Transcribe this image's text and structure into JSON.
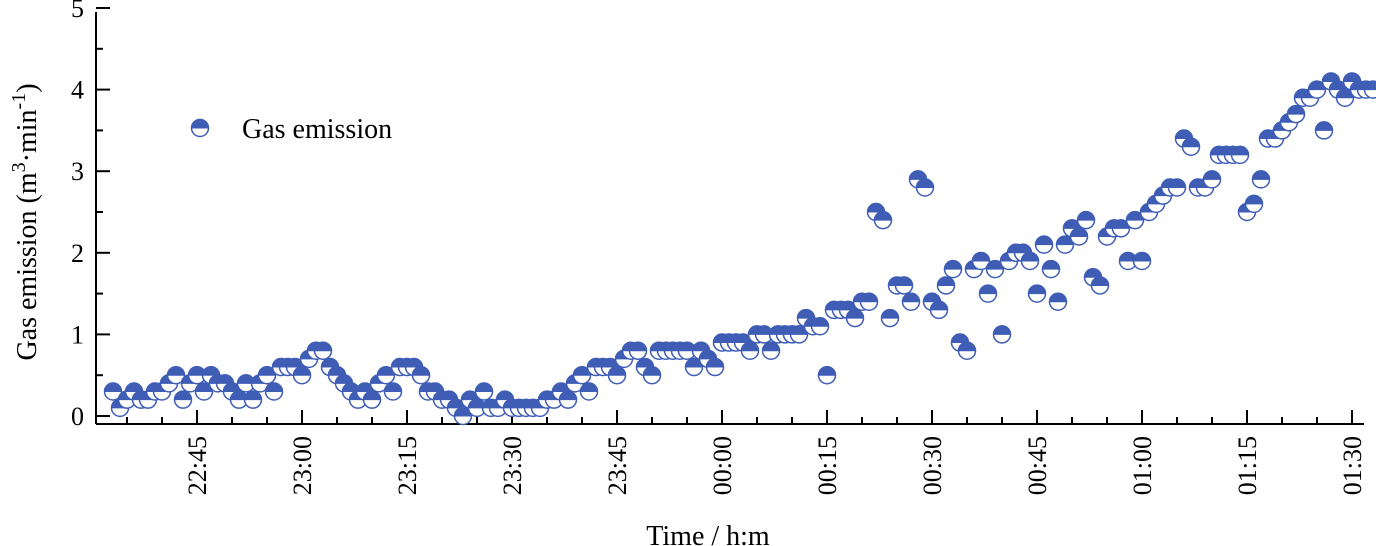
{
  "chart_data": {
    "type": "scatter",
    "xlabel": "Time / h:m",
    "ylabel_parts": [
      "Gas emission (m",
      "3",
      "·min",
      "-1",
      ")"
    ],
    "legend_label": "Gas emission",
    "legend_position": "top-left",
    "grid": false,
    "xlim": [
      "22:32",
      "01:30"
    ],
    "ylim": [
      0,
      5
    ],
    "yticks": [
      "0",
      "1",
      "2",
      "3",
      "4",
      "5"
    ],
    "xticks": [
      "22:45",
      "23:00",
      "23:15",
      "23:30",
      "23:45",
      "00:00",
      "00:15",
      "00:30",
      "00:45",
      "01:00",
      "01:15",
      "01:30"
    ],
    "marker_color": "#3f5db5",
    "marker_fill_bottom": "#ffffff",
    "series": [
      {
        "name": "Gas emission",
        "points": [
          [
            "22:33",
            0.3
          ],
          [
            "22:34",
            0.1
          ],
          [
            "22:35",
            0.2
          ],
          [
            "22:36",
            0.3
          ],
          [
            "22:37",
            0.2
          ],
          [
            "22:38",
            0.2
          ],
          [
            "22:39",
            0.3
          ],
          [
            "22:40",
            0.3
          ],
          [
            "22:41",
            0.4
          ],
          [
            "22:42",
            0.5
          ],
          [
            "22:43",
            0.2
          ],
          [
            "22:44",
            0.4
          ],
          [
            "22:45",
            0.5
          ],
          [
            "22:46",
            0.3
          ],
          [
            "22:47",
            0.5
          ],
          [
            "22:48",
            0.4
          ],
          [
            "22:49",
            0.4
          ],
          [
            "22:50",
            0.3
          ],
          [
            "22:51",
            0.2
          ],
          [
            "22:52",
            0.4
          ],
          [
            "22:53",
            0.2
          ],
          [
            "22:54",
            0.4
          ],
          [
            "22:55",
            0.5
          ],
          [
            "22:56",
            0.3
          ],
          [
            "22:57",
            0.6
          ],
          [
            "22:58",
            0.6
          ],
          [
            "22:59",
            0.6
          ],
          [
            "23:00",
            0.5
          ],
          [
            "23:01",
            0.7
          ],
          [
            "23:02",
            0.8
          ],
          [
            "23:03",
            0.8
          ],
          [
            "23:04",
            0.6
          ],
          [
            "23:05",
            0.5
          ],
          [
            "23:06",
            0.4
          ],
          [
            "23:07",
            0.3
          ],
          [
            "23:08",
            0.2
          ],
          [
            "23:09",
            0.3
          ],
          [
            "23:10",
            0.2
          ],
          [
            "23:11",
            0.4
          ],
          [
            "23:12",
            0.5
          ],
          [
            "23:13",
            0.3
          ],
          [
            "23:14",
            0.6
          ],
          [
            "23:15",
            0.6
          ],
          [
            "23:16",
            0.6
          ],
          [
            "23:17",
            0.5
          ],
          [
            "23:18",
            0.3
          ],
          [
            "23:19",
            0.3
          ],
          [
            "23:20",
            0.2
          ],
          [
            "23:21",
            0.2
          ],
          [
            "23:22",
            0.1
          ],
          [
            "23:23",
            0.0
          ],
          [
            "23:24",
            0.2
          ],
          [
            "23:25",
            0.1
          ],
          [
            "23:26",
            0.3
          ],
          [
            "23:27",
            0.1
          ],
          [
            "23:28",
            0.1
          ],
          [
            "23:29",
            0.2
          ],
          [
            "23:30",
            0.1
          ],
          [
            "23:31",
            0.1
          ],
          [
            "23:32",
            0.1
          ],
          [
            "23:33",
            0.1
          ],
          [
            "23:34",
            0.1
          ],
          [
            "23:35",
            0.2
          ],
          [
            "23:36",
            0.2
          ],
          [
            "23:37",
            0.3
          ],
          [
            "23:38",
            0.2
          ],
          [
            "23:39",
            0.4
          ],
          [
            "23:40",
            0.5
          ],
          [
            "23:41",
            0.3
          ],
          [
            "23:42",
            0.6
          ],
          [
            "23:43",
            0.6
          ],
          [
            "23:44",
            0.6
          ],
          [
            "23:45",
            0.5
          ],
          [
            "23:46",
            0.7
          ],
          [
            "23:47",
            0.8
          ],
          [
            "23:48",
            0.8
          ],
          [
            "23:49",
            0.6
          ],
          [
            "23:50",
            0.5
          ],
          [
            "23:51",
            0.8
          ],
          [
            "23:52",
            0.8
          ],
          [
            "23:53",
            0.8
          ],
          [
            "23:54",
            0.8
          ],
          [
            "23:55",
            0.8
          ],
          [
            "23:56",
            0.6
          ],
          [
            "23:57",
            0.8
          ],
          [
            "23:58",
            0.7
          ],
          [
            "23:59",
            0.6
          ],
          [
            "00:00",
            0.9
          ],
          [
            "00:01",
            0.9
          ],
          [
            "00:02",
            0.9
          ],
          [
            "00:03",
            0.9
          ],
          [
            "00:04",
            0.8
          ],
          [
            "00:05",
            1.0
          ],
          [
            "00:06",
            1.0
          ],
          [
            "00:07",
            0.8
          ],
          [
            "00:08",
            1.0
          ],
          [
            "00:09",
            1.0
          ],
          [
            "00:10",
            1.0
          ],
          [
            "00:11",
            1.0
          ],
          [
            "00:12",
            1.2
          ],
          [
            "00:13",
            1.1
          ],
          [
            "00:14",
            1.1
          ],
          [
            "00:15",
            0.5
          ],
          [
            "00:16",
            1.3
          ],
          [
            "00:17",
            1.3
          ],
          [
            "00:18",
            1.3
          ],
          [
            "00:19",
            1.2
          ],
          [
            "00:20",
            1.4
          ],
          [
            "00:21",
            1.4
          ],
          [
            "00:22",
            2.5
          ],
          [
            "00:23",
            2.4
          ],
          [
            "00:24",
            1.2
          ],
          [
            "00:25",
            1.6
          ],
          [
            "00:26",
            1.6
          ],
          [
            "00:27",
            1.4
          ],
          [
            "00:28",
            2.9
          ],
          [
            "00:29",
            2.8
          ],
          [
            "00:30",
            1.4
          ],
          [
            "00:31",
            1.3
          ],
          [
            "00:32",
            1.6
          ],
          [
            "00:33",
            1.8
          ],
          [
            "00:34",
            0.9
          ],
          [
            "00:35",
            0.8
          ],
          [
            "00:36",
            1.8
          ],
          [
            "00:37",
            1.9
          ],
          [
            "00:38",
            1.5
          ],
          [
            "00:39",
            1.8
          ],
          [
            "00:40",
            1.0
          ],
          [
            "00:41",
            1.9
          ],
          [
            "00:42",
            2.0
          ],
          [
            "00:43",
            2.0
          ],
          [
            "00:44",
            1.9
          ],
          [
            "00:45",
            1.5
          ],
          [
            "00:46",
            2.1
          ],
          [
            "00:47",
            1.8
          ],
          [
            "00:48",
            1.4
          ],
          [
            "00:49",
            2.1
          ],
          [
            "00:50",
            2.3
          ],
          [
            "00:51",
            2.2
          ],
          [
            "00:52",
            2.4
          ],
          [
            "00:53",
            1.7
          ],
          [
            "00:54",
            1.6
          ],
          [
            "00:55",
            2.2
          ],
          [
            "00:56",
            2.3
          ],
          [
            "00:57",
            2.3
          ],
          [
            "00:58",
            1.9
          ],
          [
            "00:59",
            2.4
          ],
          [
            "01:00",
            1.9
          ],
          [
            "01:01",
            2.5
          ],
          [
            "01:02",
            2.6
          ],
          [
            "01:03",
            2.7
          ],
          [
            "01:04",
            2.8
          ],
          [
            "01:05",
            2.8
          ],
          [
            "01:06",
            3.4
          ],
          [
            "01:07",
            3.3
          ],
          [
            "01:08",
            2.8
          ],
          [
            "01:09",
            2.8
          ],
          [
            "01:10",
            2.9
          ],
          [
            "01:11",
            3.2
          ],
          [
            "01:12",
            3.2
          ],
          [
            "01:13",
            3.2
          ],
          [
            "01:14",
            3.2
          ],
          [
            "01:15",
            2.5
          ],
          [
            "01:16",
            2.6
          ],
          [
            "01:17",
            2.9
          ],
          [
            "01:18",
            3.4
          ],
          [
            "01:19",
            3.4
          ],
          [
            "01:20",
            3.5
          ],
          [
            "01:21",
            3.6
          ],
          [
            "01:22",
            3.7
          ],
          [
            "01:23",
            3.9
          ],
          [
            "01:24",
            3.9
          ],
          [
            "01:25",
            4.0
          ],
          [
            "01:26",
            3.5
          ],
          [
            "01:27",
            4.1
          ],
          [
            "01:28",
            4.0
          ],
          [
            "01:29",
            3.9
          ],
          [
            "01:30",
            4.1
          ],
          [
            "01:31",
            4.0
          ],
          [
            "01:32",
            4.0
          ],
          [
            "01:33",
            4.0
          ]
        ]
      }
    ]
  }
}
